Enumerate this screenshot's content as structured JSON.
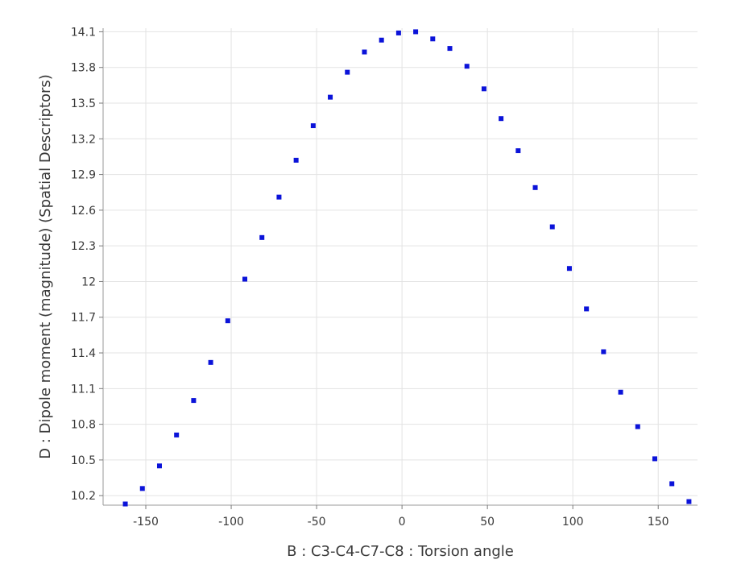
{
  "chart_data": {
    "type": "scatter",
    "title": "",
    "xlabel": "B : C3-C4-C7-C8 : Torsion angle",
    "ylabel": "D : Dipole moment (magnitude) (Spatial Descriptors)",
    "xlim": [
      -175,
      173
    ],
    "ylim": [
      10.12,
      14.13
    ],
    "xticks": [
      -150,
      -100,
      -50,
      0,
      50,
      100,
      150
    ],
    "xtick_labels": [
      "-150",
      "-100",
      "-50",
      "0",
      "50",
      "100",
      "150"
    ],
    "yticks": [
      10.2,
      10.5,
      10.8,
      11.1,
      11.4,
      11.7,
      12.0,
      12.3,
      12.6,
      12.9,
      13.2,
      13.5,
      13.8,
      14.1
    ],
    "ytick_labels": [
      "10.2",
      "10.5",
      "10.8",
      "11.1",
      "11.4",
      "11.7",
      "12",
      "12.3",
      "12.6",
      "12.9",
      "13.2",
      "13.5",
      "13.8",
      "14.1"
    ],
    "grid": true,
    "point_color": "#0b13d9",
    "series": [
      {
        "name": "Dipole moment",
        "x": [
          -162,
          -152,
          -142,
          -132,
          -122,
          -112,
          -102,
          -92,
          -82,
          -72,
          -62,
          -52,
          -42,
          -32,
          -22,
          -12,
          -2,
          8,
          18,
          28,
          38,
          48,
          58,
          68,
          78,
          88,
          98,
          108,
          118,
          128,
          138,
          148,
          158,
          168
        ],
        "y": [
          10.13,
          10.26,
          10.45,
          10.71,
          11.0,
          11.32,
          11.67,
          12.02,
          12.37,
          12.71,
          13.02,
          13.31,
          13.55,
          13.76,
          13.93,
          14.03,
          14.09,
          14.1,
          14.04,
          13.96,
          13.81,
          13.62,
          13.37,
          13.1,
          12.79,
          12.46,
          12.11,
          11.77,
          11.41,
          11.07,
          10.78,
          10.51,
          10.3,
          10.15
        ]
      }
    ]
  }
}
